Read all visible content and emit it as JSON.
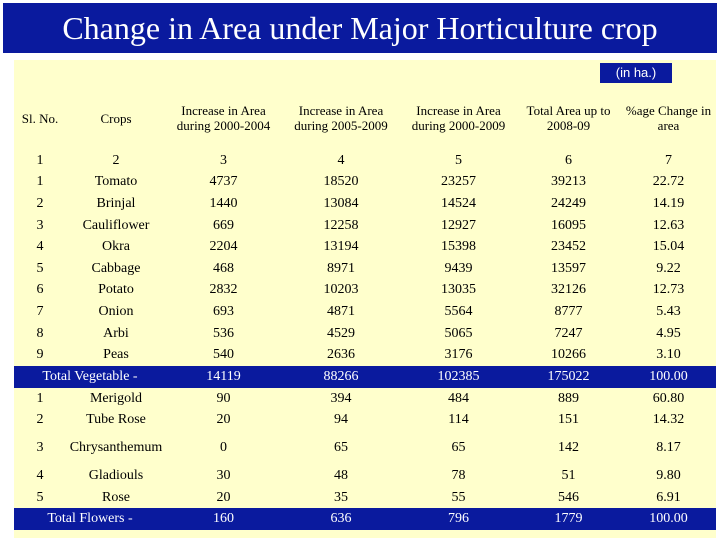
{
  "title": "Change in Area under Major Horticulture crop",
  "unit": "(in ha.)",
  "headers": [
    "Sl. No.",
    "Crops",
    "Increase in Area during 2000-2004",
    "Increase in Area during 2005-2009",
    "Increase in Area during 2000-2009",
    "Total Area up to 2008-09",
    "%age Change in area"
  ],
  "column_numbers": [
    "1",
    "2",
    "3",
    "4",
    "5",
    "6",
    "7"
  ],
  "vegetables": [
    {
      "sl": "1",
      "crop": "Tomato",
      "a2004": "4737",
      "a2009": "18520",
      "a0009": "23257",
      "total": "39213",
      "pct": "22.72"
    },
    {
      "sl": "2",
      "crop": "Brinjal",
      "a2004": "1440",
      "a2009": "13084",
      "a0009": "14524",
      "total": "24249",
      "pct": "14.19"
    },
    {
      "sl": "3",
      "crop": "Cauliflower",
      "a2004": "669",
      "a2009": "12258",
      "a0009": "12927",
      "total": "16095",
      "pct": "12.63"
    },
    {
      "sl": "4",
      "crop": "Okra",
      "a2004": "2204",
      "a2009": "13194",
      "a0009": "15398",
      "total": "23452",
      "pct": "15.04"
    },
    {
      "sl": "5",
      "crop": "Cabbage",
      "a2004": "468",
      "a2009": "8971",
      "a0009": "9439",
      "total": "13597",
      "pct": "9.22"
    },
    {
      "sl": "6",
      "crop": "Potato",
      "a2004": "2832",
      "a2009": "10203",
      "a0009": "13035",
      "total": "32126",
      "pct": "12.73"
    },
    {
      "sl": "7",
      "crop": "Onion",
      "a2004": "693",
      "a2009": "4871",
      "a0009": "5564",
      "total": "8777",
      "pct": "5.43"
    },
    {
      "sl": "8",
      "crop": "Arbi",
      "a2004": "536",
      "a2009": "4529",
      "a0009": "5065",
      "total": "7247",
      "pct": "4.95"
    },
    {
      "sl": "9",
      "crop": "Peas",
      "a2004": "540",
      "a2009": "2636",
      "a0009": "3176",
      "total": "10266",
      "pct": "3.10"
    }
  ],
  "total_vegetable": {
    "label": "Total Vegetable -",
    "a2004": "14119",
    "a2009": "88266",
    "a0009": "102385",
    "total": "175022",
    "pct": "100.00"
  },
  "flowers": [
    {
      "sl": "1",
      "crop": "Merigold",
      "a2004": "90",
      "a2009": "394",
      "a0009": "484",
      "total": "889",
      "pct": "60.80"
    },
    {
      "sl": "2",
      "crop": "Tube Rose",
      "a2004": "20",
      "a2009": "94",
      "a0009": "114",
      "total": "151",
      "pct": "14.32"
    },
    {
      "sl": "3",
      "crop": "Chrysanthemum",
      "a2004": "0",
      "a2009": "65",
      "a0009": "65",
      "total": "142",
      "pct": "8.17"
    },
    {
      "sl": "4",
      "crop": "Gladiouls",
      "a2004": "30",
      "a2009": "48",
      "a0009": "78",
      "total": "51",
      "pct": "9.80"
    },
    {
      "sl": "5",
      "crop": "Rose",
      "a2004": "20",
      "a2009": "35",
      "a0009": "55",
      "total": "546",
      "pct": "6.91"
    }
  ],
  "total_flowers": {
    "label": "Total Flowers -",
    "a2004": "160",
    "a2009": "636",
    "a0009": "796",
    "total": "1779",
    "pct": "100.00"
  },
  "colors": {
    "title_bg": "#0a1a9e",
    "table_bg": "#ffffcc",
    "highlight_bg": "#0a1a9e",
    "text": "#000000",
    "highlight_text": "#ffffff"
  }
}
